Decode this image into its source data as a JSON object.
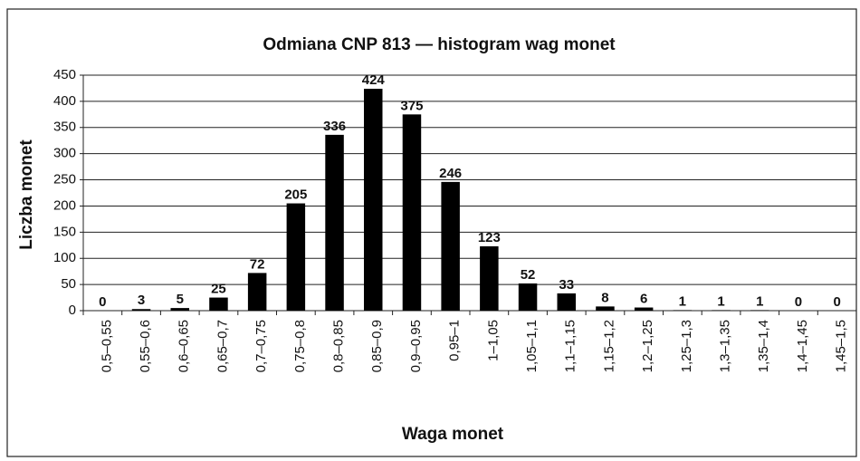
{
  "chart_data": {
    "type": "bar",
    "title": "Odmiana CNP 813 — histogram wag monet",
    "xlabel": "Waga monet",
    "ylabel": "Liczba monet",
    "categories": [
      "0,5–0,55",
      "0,55–0,6",
      "0,6–0,65",
      "0,65–0,7",
      "0,7–0,75",
      "0,75–0,8",
      "0,8–0,85",
      "0,85–0,9",
      "0,9–0,95",
      "0,95–1",
      "1–1,05",
      "1,05–1,1",
      "1,1–1,15",
      "1,15–1,2",
      "1,2–1,25",
      "1,25–1,3",
      "1,3–1,35",
      "1,35–1,4",
      "1,4–1,45",
      "1,45–1,5"
    ],
    "values": [
      0,
      3,
      5,
      25,
      72,
      205,
      336,
      424,
      375,
      246,
      123,
      52,
      33,
      8,
      6,
      1,
      1,
      1,
      0,
      0
    ],
    "color": "#000000",
    "ylim": [
      0,
      450
    ],
    "yticks": [
      0,
      50,
      100,
      150,
      200,
      250,
      300,
      350,
      400,
      450
    ],
    "grid": true
  }
}
